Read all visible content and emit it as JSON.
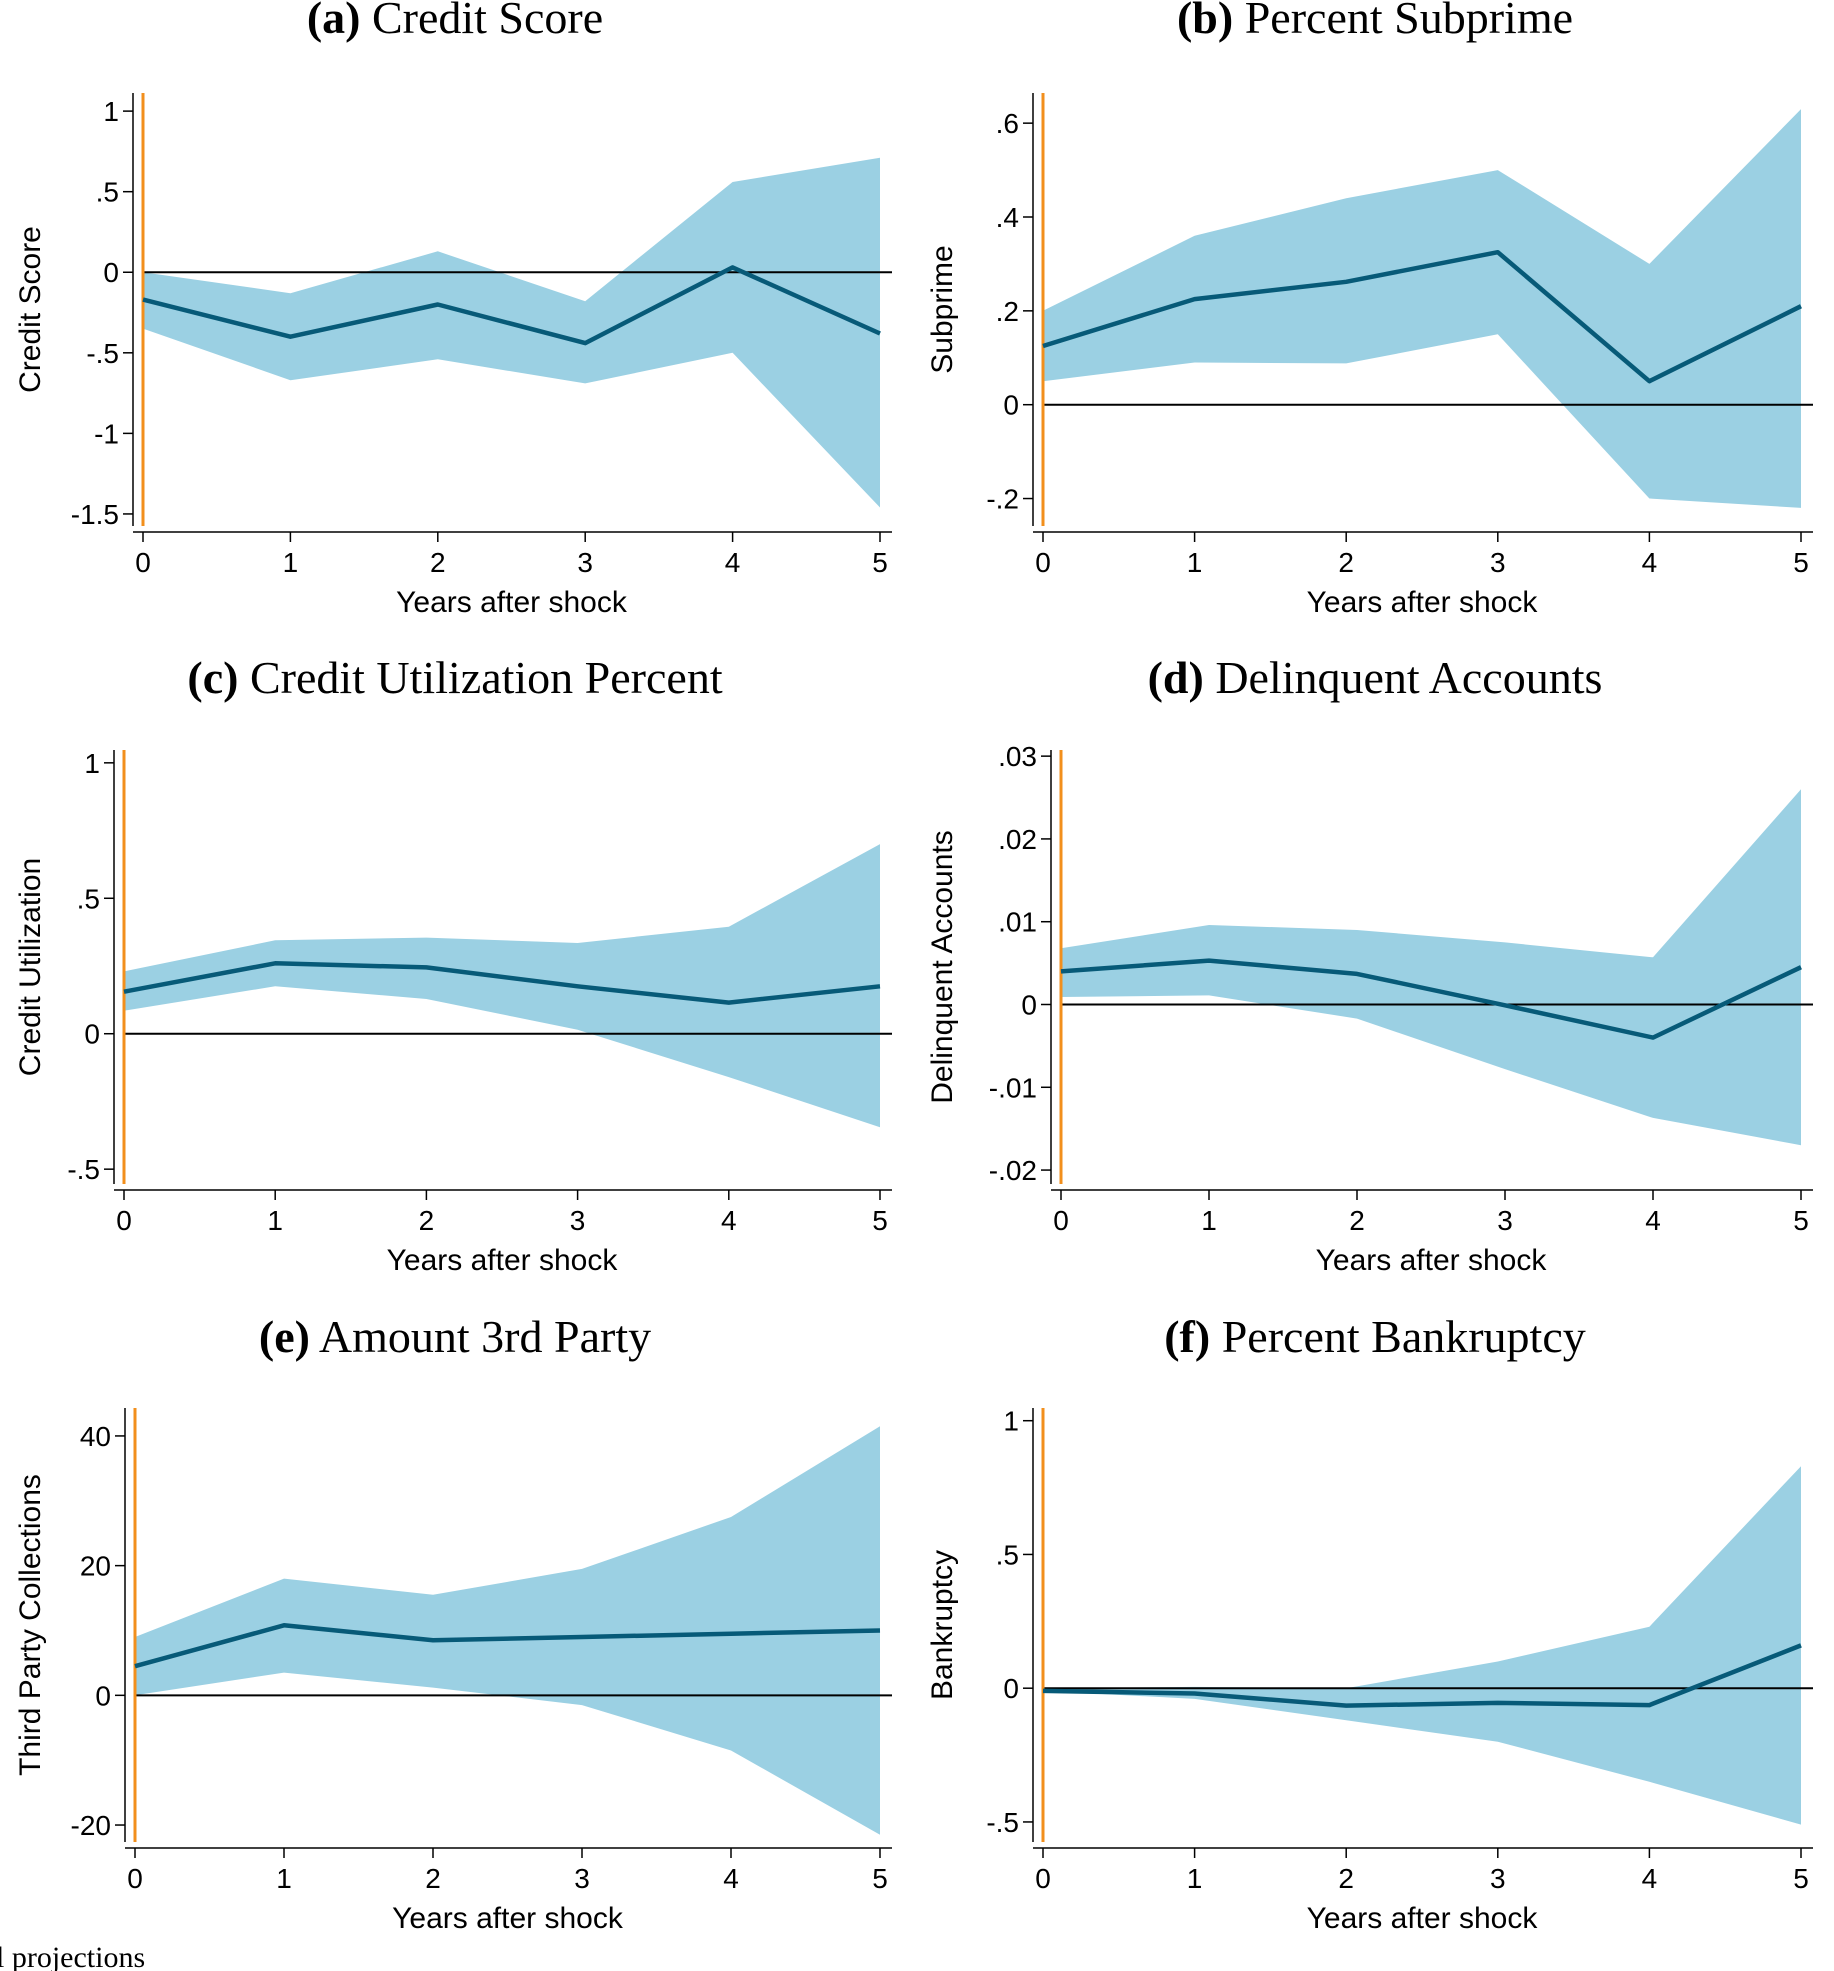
{
  "footnote": "l projections",
  "colors": {
    "band": "#9bd0e3",
    "line": "#075a78",
    "event": "#f28f1c",
    "zero": "#000000",
    "axis": "#000000"
  },
  "chart_data": [
    {
      "type": "area",
      "title_tag": "(a)",
      "title": "Credit Score",
      "xlabel": "Years after shock",
      "ylabel": "Credit Score",
      "xlim": [
        0,
        5
      ],
      "ylim": [
        -1.55,
        1.1
      ],
      "x": [
        0,
        1,
        2,
        3,
        4,
        5
      ],
      "x_tick_labels": [
        "0",
        "1",
        "2",
        "3",
        "4",
        "5"
      ],
      "y_ticks": [
        1,
        0.5,
        0,
        -0.5,
        -1,
        -1.5
      ],
      "y_tick_labels": [
        "1",
        ".5",
        "0",
        "-.5",
        "-1",
        "-1.5"
      ],
      "point_estimate": [
        -0.17,
        -0.4,
        -0.2,
        -0.44,
        0.03,
        -0.38
      ],
      "ci_upper": [
        0.0,
        -0.13,
        0.13,
        -0.18,
        0.56,
        0.71
      ],
      "ci_lower": [
        -0.35,
        -0.67,
        -0.54,
        -0.69,
        -0.5,
        -1.46
      ],
      "zero_line": 0,
      "event_x": 0
    },
    {
      "type": "area",
      "title_tag": "(b)",
      "title": "Percent Subprime",
      "xlabel": "Years after shock",
      "ylabel": "Subprime",
      "xlim": [
        0,
        5
      ],
      "ylim": [
        -0.25,
        0.66
      ],
      "x": [
        0,
        1,
        2,
        3,
        4,
        5
      ],
      "x_tick_labels": [
        "0",
        "1",
        "2",
        "3",
        "4",
        "5"
      ],
      "y_ticks": [
        0.6,
        0.4,
        0.2,
        0,
        -0.2
      ],
      "y_tick_labels": [
        ".6",
        ".4",
        ".2",
        "0",
        "-.2"
      ],
      "point_estimate": [
        0.125,
        0.225,
        0.262,
        0.325,
        0.05,
        0.21
      ],
      "ci_upper": [
        0.2,
        0.36,
        0.44,
        0.5,
        0.3,
        0.63
      ],
      "ci_lower": [
        0.05,
        0.09,
        0.088,
        0.15,
        -0.2,
        -0.22
      ],
      "zero_line": 0,
      "event_x": 0
    },
    {
      "type": "area",
      "title_tag": "(c)",
      "title": "Credit Utilization Percent",
      "xlabel": "Years after shock",
      "ylabel": "Credit Utilization",
      "xlim": [
        0,
        5
      ],
      "ylim": [
        -0.54,
        1.04
      ],
      "x": [
        0,
        1,
        2,
        3,
        4,
        5
      ],
      "x_tick_labels": [
        "0",
        "1",
        "2",
        "3",
        "4",
        "5"
      ],
      "y_ticks": [
        1,
        0.5,
        0,
        -0.5
      ],
      "y_tick_labels": [
        "1",
        ".5",
        "0",
        "-.5"
      ],
      "point_estimate": [
        0.155,
        0.26,
        0.245,
        0.175,
        0.115,
        0.175
      ],
      "ci_upper": [
        0.23,
        0.345,
        0.355,
        0.335,
        0.395,
        0.7
      ],
      "ci_lower": [
        0.085,
        0.175,
        0.128,
        0.015,
        -0.16,
        -0.345
      ],
      "zero_line": 0,
      "event_x": 0
    },
    {
      "type": "area",
      "title_tag": "(d)",
      "title": "Delinquent Accounts",
      "xlabel": "Years after shock",
      "ylabel": "Delinquent Accounts",
      "xlim": [
        0,
        5
      ],
      "ylim": [
        -0.0212,
        0.0305
      ],
      "x": [
        0,
        1,
        2,
        3,
        4,
        5
      ],
      "x_tick_labels": [
        "0",
        "1",
        "2",
        "3",
        "4",
        "5"
      ],
      "y_ticks": [
        0.03,
        0.02,
        0.01,
        0,
        -0.01,
        -0.02
      ],
      "y_tick_labels": [
        ".03",
        ".02",
        ".01",
        "0",
        "-.01",
        "-.02"
      ],
      "point_estimate": [
        0.004,
        0.0053,
        0.0037,
        -0.0001,
        -0.004,
        0.0045
      ],
      "ci_upper": [
        0.0068,
        0.0096,
        0.009,
        0.0075,
        0.0057,
        0.026
      ],
      "ci_lower": [
        0.0009,
        0.0011,
        -0.0017,
        -0.0078,
        -0.0137,
        -0.017
      ],
      "zero_line": 0,
      "event_x": 0
    },
    {
      "type": "area",
      "title_tag": "(e)",
      "title": "Amount 3rd Party",
      "xlabel": "Years after shock",
      "ylabel": "Third Party Collections",
      "xlim": [
        0,
        5
      ],
      "ylim": [
        -22,
        44
      ],
      "x": [
        0,
        1,
        2,
        3,
        4,
        5
      ],
      "x_tick_labels": [
        "0",
        "1",
        "2",
        "3",
        "4",
        "5"
      ],
      "y_ticks": [
        40,
        20,
        0,
        -20
      ],
      "y_tick_labels": [
        "40",
        "20",
        "0",
        "-20"
      ],
      "point_estimate": [
        4.5,
        10.8,
        8.5,
        9.0,
        9.5,
        10.0
      ],
      "ci_upper": [
        9.0,
        18.0,
        15.5,
        19.5,
        27.5,
        41.5
      ],
      "ci_lower": [
        0.0,
        3.5,
        1.2,
        -1.5,
        -8.5,
        -21.5
      ],
      "zero_line": 0,
      "event_x": 0
    },
    {
      "type": "area",
      "title_tag": "(f)",
      "title": "Percent Bankruptcy",
      "xlabel": "Years after shock",
      "ylabel": "Bankruptcy",
      "xlim": [
        0,
        5
      ],
      "ylim": [
        -0.56,
        1.04
      ],
      "x": [
        0,
        1,
        2,
        3,
        4,
        5
      ],
      "x_tick_labels": [
        "0",
        "1",
        "2",
        "3",
        "4",
        "5"
      ],
      "y_ticks": [
        1,
        0.5,
        0,
        -0.5
      ],
      "y_tick_labels": [
        "1",
        ".5",
        "0",
        "-.5"
      ],
      "point_estimate": [
        -0.01,
        -0.02,
        -0.065,
        -0.055,
        -0.063,
        0.16
      ],
      "ci_upper": [
        0.0,
        0.005,
        0.0,
        0.1,
        0.23,
        0.83
      ],
      "ci_lower": [
        -0.01,
        -0.04,
        -0.12,
        -0.2,
        -0.35,
        -0.51
      ],
      "zero_line": 0,
      "event_x": 0
    }
  ]
}
